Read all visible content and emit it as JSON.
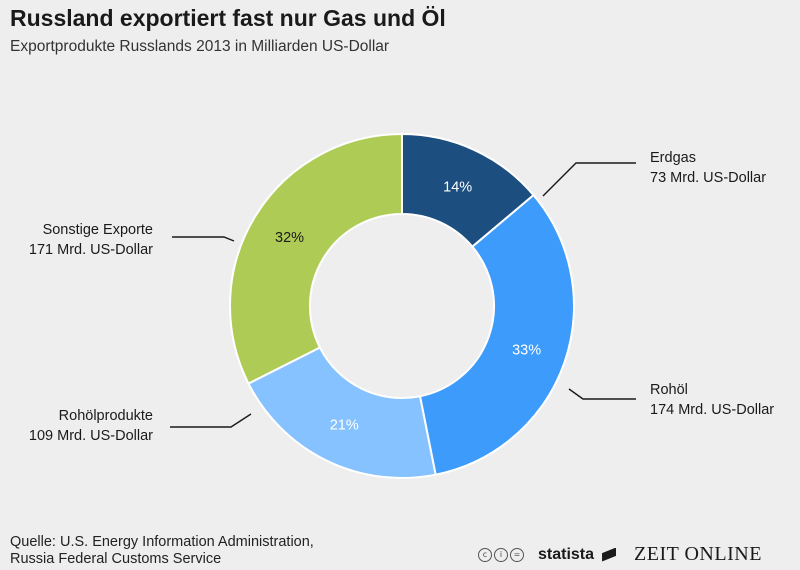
{
  "header": {
    "title": "Russland exportiert fast nur Gas und Öl",
    "subtitle": "Exportprodukte Russlands 2013 in Milliarden US-Dollar"
  },
  "chart_data": {
    "type": "pie",
    "title": "Russland exportiert fast nur Gas und Öl",
    "subtitle": "Exportprodukte Russlands 2013 in Milliarden US-Dollar",
    "donut": true,
    "slices": [
      {
        "label": "Erdgas",
        "value_label": "73 Mrd. US-Dollar",
        "value": 73,
        "percent_label": "14%",
        "percent": 14,
        "color": "#1c4e80",
        "pct_color": "#ffffff"
      },
      {
        "label": "Rohöl",
        "value_label": "174 Mrd. US-Dollar",
        "value": 174,
        "percent_label": "33%",
        "percent": 33,
        "color": "#3d9bfb",
        "pct_color": "#ffffff"
      },
      {
        "label": "Rohölprodukte",
        "value_label": "109 Mrd. US-Dollar",
        "value": 109,
        "percent_label": "21%",
        "percent": 21,
        "color": "#86c2ff",
        "pct_color": "#ffffff"
      },
      {
        "label": "Sonstige Exporte",
        "value_label": "171 Mrd. US-Dollar",
        "value": 171,
        "percent_label": "32%",
        "percent": 32,
        "color": "#aecc55",
        "pct_color": "#1a1a1a"
      }
    ]
  },
  "footer": {
    "source_line1": "Quelle: U.S. Energy Information Administration,",
    "source_line2": "Russia Federal Customs Service",
    "brand1": "statista",
    "brand2": "ZEIT ONLINE",
    "license_icons": [
      "cc-icon",
      "by-icon",
      "nd-icon"
    ]
  }
}
